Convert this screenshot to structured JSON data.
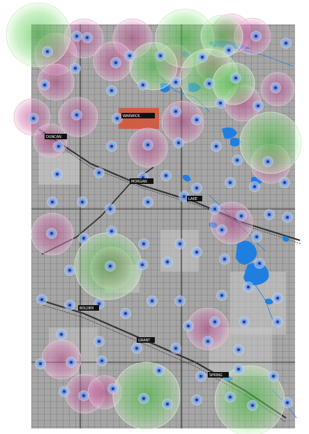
{
  "colors": {
    "paper": "#ffffff",
    "map_gray": "#a7a7a7",
    "map_light": "#c9c9c9",
    "road": "#444444",
    "water": "#1f7fe0",
    "label_bg": "#111111",
    "label_fg": "#ffffff",
    "highlight_bg": "#d4583a",
    "pink_zone": "#c85a9a",
    "green_zone": "#54d04a",
    "blue_marker": "#5d8fe0"
  },
  "icons": {
    "coverage_marker": "blue-dot-icon",
    "pink_zone": "pink-circle",
    "green_zone": "green-circle"
  },
  "towns": [
    {
      "id": "warwick",
      "label": "WARWICK"
    },
    {
      "id": "duncan",
      "label": "DUNCAN"
    },
    {
      "id": "morgan",
      "label": "MORGAN"
    },
    {
      "id": "lake",
      "label": "LAKE"
    },
    {
      "id": "bolder",
      "label": "BOLDER"
    },
    {
      "id": "grant",
      "label": "GRANT"
    },
    {
      "id": "spring",
      "label": "SPRING"
    }
  ]
}
